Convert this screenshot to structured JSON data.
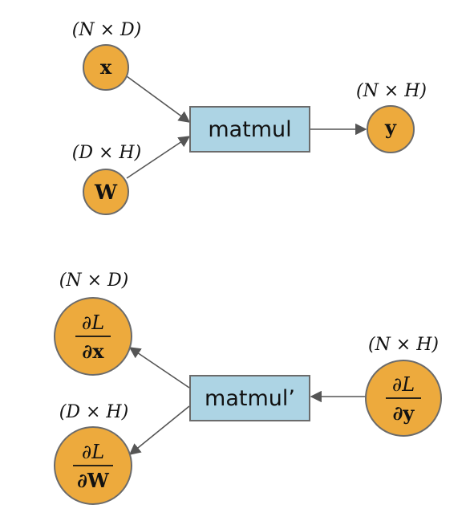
{
  "forward": {
    "op_label": "matmul",
    "inputs": [
      {
        "symbol": "x",
        "shape": "(N × D)"
      },
      {
        "symbol": "W",
        "shape": "(D × H)"
      }
    ],
    "output": {
      "symbol": "y",
      "shape": "(N × H)"
    }
  },
  "backward": {
    "op_label": "matmul’",
    "upstream": {
      "numerator": "∂L",
      "denominator": "∂y",
      "shape": "(N × H)"
    },
    "grads": [
      {
        "numerator": "∂L",
        "denominator": "∂x",
        "shape": "(N × D)"
      },
      {
        "numerator": "∂L",
        "denominator": "∂W",
        "shape": "(D × H)"
      }
    ]
  },
  "colors": {
    "node_fill": "#EDAA3D",
    "op_fill": "#ADD4E4",
    "stroke": "#6B6B6B"
  }
}
